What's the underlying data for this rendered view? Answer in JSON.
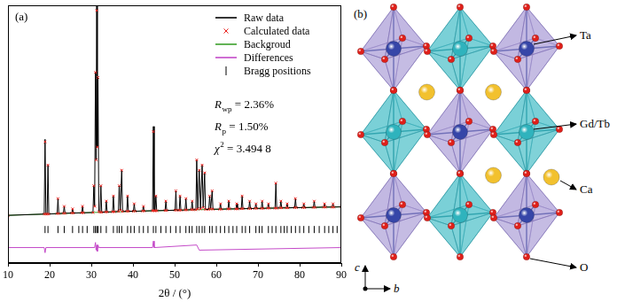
{
  "chart_data": {
    "type": "scatter",
    "panel_label": "(a)",
    "x_label": "2θ / (°)",
    "xlim": [
      10,
      90
    ],
    "xticks": [
      10,
      20,
      30,
      40,
      50,
      60,
      70,
      80,
      90
    ],
    "ylim": [
      0,
      100
    ],
    "tick_labels": "x",
    "grid": false,
    "legend": "upper right",
    "x": [
      10,
      18.7,
      18.9,
      19.1,
      19.4,
      19.6,
      19.8,
      21.8,
      22.0,
      22.2,
      23.3,
      23.5,
      23.7,
      25.3,
      25.5,
      25.7,
      27.7,
      27.9,
      28.1,
      30.4,
      30.6,
      30.8,
      31.0,
      31.15,
      31.3,
      31.45,
      31.6,
      31.8,
      32.1,
      32.3,
      32.5,
      33.4,
      33.6,
      33.8,
      35.1,
      35.3,
      35.5,
      36.5,
      36.7,
      36.95,
      37.3,
      37.5,
      38.5,
      38.7,
      38.9,
      40.1,
      40.3,
      40.5,
      42.3,
      42.5,
      42.7,
      44.7,
      44.9,
      45.1,
      45.3,
      45.5,
      45.7,
      47.7,
      47.9,
      48.1,
      50.1,
      50.3,
      50.5,
      51.1,
      51.3,
      51.5,
      52.5,
      52.7,
      52.9,
      54.0,
      54.2,
      54.4,
      55.1,
      55.3,
      55.55,
      55.9,
      56.2,
      56.6,
      56.85,
      57.2,
      57.4,
      58.2,
      58.4,
      58.65,
      59.0,
      59.2,
      60.8,
      61.0,
      61.2,
      62.8,
      63.0,
      63.2,
      64.7,
      64.9,
      65.1,
      66.0,
      66.2,
      66.4,
      67.8,
      68.0,
      68.2,
      69.3,
      69.5,
      69.7,
      70.8,
      71.0,
      71.2,
      72.3,
      72.5,
      72.7,
      74.1,
      74.3,
      74.5,
      75.3,
      75.5,
      75.7,
      76.8,
      77.0,
      77.2,
      78.8,
      79.0,
      79.2,
      80.8,
      81.0,
      81.2,
      83.3,
      83.5,
      83.7,
      85.8,
      86.0,
      86.2,
      87.8,
      88.0,
      88.2,
      90
    ],
    "series": [
      {
        "name": "Raw data",
        "type": "line",
        "marker": "none",
        "color": "#000000",
        "values": [
          18.5,
          19.0,
          48,
          19.0,
          19.0,
          38,
          19.0,
          19.2,
          25,
          19.2,
          19.3,
          22,
          19.3,
          19.4,
          21,
          19.4,
          19.5,
          22,
          19.5,
          19.6,
          30,
          22,
          74,
          40,
          100,
          45,
          72,
          20,
          19.7,
          30,
          19.7,
          19.8,
          24,
          19.8,
          19.9,
          26,
          19.9,
          20,
          30,
          20.5,
          36,
          20,
          20.1,
          26,
          20.1,
          20.1,
          23,
          20.1,
          20.2,
          22,
          20.2,
          20.3,
          53,
          20.3,
          20.3,
          26,
          20.3,
          20.4,
          24,
          20.4,
          20.5,
          28,
          20.5,
          20.5,
          26,
          20.5,
          20.6,
          25,
          20.6,
          20.7,
          24,
          20.7,
          20.7,
          40,
          21,
          36,
          21,
          38,
          21.5,
          35,
          20.8,
          20.8,
          26,
          21,
          28,
          20.9,
          20.9,
          23,
          20.9,
          21,
          24,
          21,
          21,
          23,
          21,
          21.1,
          26,
          21.1,
          21.1,
          24,
          21.1,
          21.2,
          23,
          21.2,
          21.2,
          24,
          21.2,
          21.3,
          23,
          21.3,
          21.3,
          31,
          21.3,
          21.4,
          24,
          21.4,
          21.4,
          23,
          21.4,
          21.5,
          25,
          21.5,
          21.5,
          23,
          21.5,
          21.6,
          24,
          21.6,
          21.7,
          23,
          21.7,
          21.7,
          23,
          21.7,
          21.8
        ]
      },
      {
        "name": "Calculated data",
        "type": "scatter",
        "marker": "x",
        "color": "#e8201c",
        "values": [
          18.5,
          19.0,
          47,
          19.0,
          19.0,
          38,
          19.0,
          19.2,
          25,
          19.2,
          19.3,
          22,
          19.3,
          19.4,
          21,
          19.4,
          19.5,
          22,
          19.5,
          19.6,
          30,
          22,
          74,
          40,
          98,
          45,
          72,
          20,
          19.7,
          30,
          19.7,
          19.8,
          24,
          19.8,
          19.9,
          26,
          19.9,
          20,
          30,
          20.5,
          36,
          20,
          20.1,
          26,
          20.1,
          20.1,
          23,
          20.1,
          20.2,
          22,
          20.2,
          20.3,
          51,
          20.3,
          20.3,
          26,
          20.3,
          20.4,
          24,
          20.4,
          20.5,
          28,
          20.5,
          20.5,
          26,
          20.5,
          20.6,
          25,
          20.6,
          20.7,
          24,
          20.7,
          20.7,
          40,
          21,
          36,
          21,
          38,
          21.5,
          35,
          20.8,
          20.8,
          26,
          21,
          28,
          20.9,
          20.9,
          23,
          20.9,
          21,
          24,
          21,
          21,
          23,
          21,
          21.1,
          26,
          21.1,
          21.1,
          24,
          21.1,
          21.2,
          23,
          21.2,
          21.2,
          24,
          21.2,
          21.3,
          23,
          21.3,
          21.3,
          31,
          21.3,
          21.4,
          24,
          21.4,
          21.4,
          23,
          21.4,
          21.5,
          25,
          21.5,
          21.5,
          23,
          21.5,
          21.6,
          24,
          21.6,
          21.7,
          23,
          21.7,
          21.7,
          23,
          21.7,
          21.8
        ]
      },
      {
        "name": "Backgroud",
        "type": "line",
        "marker": "none",
        "color": "#3aa02a",
        "x": [
          10,
          30,
          50,
          70,
          90
        ],
        "values": [
          18.5,
          19.6,
          20.5,
          21.2,
          21.8
        ]
      },
      {
        "name": "Differences",
        "type": "line",
        "marker": "none",
        "color": "#c44ac8",
        "x": [
          10,
          18.7,
          18.9,
          19.1,
          30.8,
          31.0,
          31.15,
          31.3,
          31.45,
          31.6,
          31.8,
          44.7,
          44.9,
          45.1,
          55.3,
          55.9,
          90
        ],
        "values": [
          6,
          6,
          4,
          6,
          6,
          8,
          5,
          7,
          4.5,
          7,
          6,
          6,
          8.5,
          6,
          7,
          5,
          6
        ]
      },
      {
        "name": "Bragg positions",
        "type": "scatter",
        "marker": "vline",
        "color": "#000000",
        "x": [
          18.9,
          19.6,
          22.0,
          23.5,
          25.5,
          27.0,
          27.9,
          29.0,
          30.6,
          31.0,
          31.3,
          31.6,
          32.3,
          33.6,
          35.3,
          36.2,
          36.7,
          37.3,
          38.7,
          39.5,
          40.3,
          41.5,
          42.5,
          43.6,
          44.9,
          45.5,
          46.7,
          47.9,
          49.0,
          50.3,
          51.3,
          52.7,
          53.5,
          54.2,
          55.3,
          55.9,
          56.6,
          57.2,
          58.4,
          59.0,
          60.0,
          61.0,
          62.0,
          63.0,
          64.0,
          64.9,
          66.2,
          67.0,
          68.0,
          69.5,
          70.3,
          71.0,
          72.5,
          73.4,
          74.3,
          75.5,
          76.3,
          77.0,
          78.0,
          79.0,
          80.0,
          81.0,
          82.2,
          83.5,
          84.7,
          86.0,
          87.0,
          88.0,
          89.0
        ],
        "values": [
          13,
          13,
          13,
          13,
          13,
          13,
          13,
          13,
          13,
          13,
          13,
          13,
          13,
          13,
          13,
          13,
          13,
          13,
          13,
          13,
          13,
          13,
          13,
          13,
          13,
          13,
          13,
          13,
          13,
          13,
          13,
          13,
          13,
          13,
          13,
          13,
          13,
          13,
          13,
          13,
          13,
          13,
          13,
          13,
          13,
          13,
          13,
          13,
          13,
          13,
          13,
          13,
          13,
          13,
          13,
          13,
          13,
          13,
          13,
          13,
          13,
          13,
          13,
          13,
          13,
          13,
          13,
          13,
          13
        ]
      }
    ],
    "annotations": [
      {
        "text": "R",
        "sub": "wp",
        "rest": " = 2.36%"
      },
      {
        "text": "R",
        "sub": "p",
        "rest": " = 1.50%"
      },
      {
        "text": "χ",
        "sup": "2",
        "rest": " = 3.494 8"
      }
    ]
  },
  "structure": {
    "panel_label": "(b)",
    "atoms": [
      {
        "label": "Ta",
        "color": "#3646a8"
      },
      {
        "label": "Gd/Tb",
        "color": "#2fb3bd"
      },
      {
        "label": "Ca",
        "color": "#f2c12e"
      },
      {
        "label": "O",
        "color": "#e0201a"
      }
    ],
    "axes": [
      "c",
      "b"
    ]
  }
}
